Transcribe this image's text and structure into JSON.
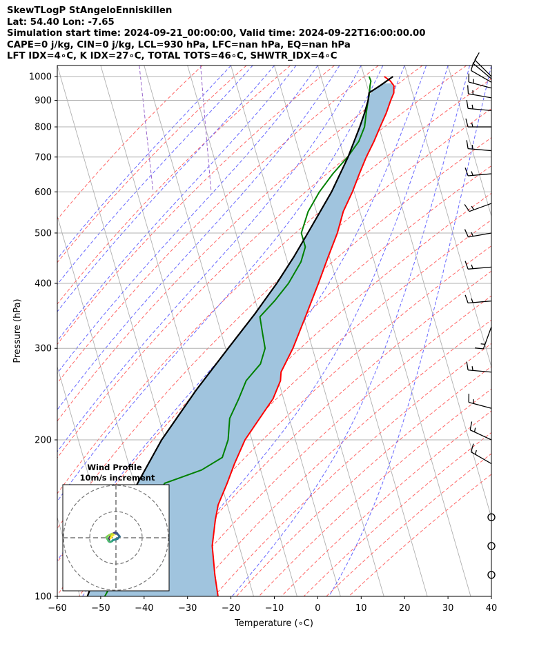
{
  "title": {
    "line1": "SkewTLogP StAngeloEnniskillen",
    "line2": "Lat: 54.40   Lon: -7.65",
    "line3": "Simulation start time: 2024-09-21_00:00:00, Valid time: 2024-09-22T16:00:00.00",
    "line4": "CAPE=0 j/kg, CIN=0 j/kg, LCL=930 hPa, LFC=nan hPa, EQ=nan hPa",
    "line5": "LFT IDX=4∘C, K IDX=27∘C, TOTAL TOTS=46∘C, SHWTR_IDX=4∘C"
  },
  "colors": {
    "temperature": "#ff0000",
    "dewpoint": "#008000",
    "parcel": "#000000",
    "shade": "#a0c4de",
    "dry_adiabat": "#ff6666",
    "moist_adiabat": "#6666ff",
    "mixing_ratio": "#9966cc",
    "isotherm": "#b0b0b0"
  },
  "chart_data": {
    "type": "skewt",
    "xlabel": "Temperature (∘C)",
    "ylabel": "Pressure (hPa)",
    "xlim": [
      -60,
      40
    ],
    "ylim": [
      1050,
      100
    ],
    "x_ticks": [
      "−60",
      "−50",
      "−40",
      "−30",
      "−20",
      "−10",
      "0",
      "10",
      "20",
      "30",
      "40"
    ],
    "x_tick_values": [
      -60,
      -50,
      -40,
      -30,
      -20,
      -10,
      0,
      10,
      20,
      30,
      40
    ],
    "y_ticks": [
      "100",
      "200",
      "300",
      "400",
      "500",
      "600",
      "700",
      "800",
      "900",
      "1000"
    ],
    "y_tick_values": [
      100,
      200,
      300,
      400,
      500,
      600,
      700,
      800,
      900,
      1000
    ],
    "temperature_profile": {
      "pressure": [
        1000,
        980,
        960,
        930,
        900,
        850,
        800,
        750,
        700,
        650,
        600,
        550,
        500,
        450,
        400,
        350,
        300,
        270,
        260,
        240,
        220,
        200,
        180,
        165,
        150,
        140,
        125,
        110,
        100
      ],
      "temperature": [
        14.6,
        15.7,
        16.2,
        15.7,
        14.5,
        12.6,
        10.3,
        7.9,
        5.1,
        2.4,
        -0.4,
        -3.8,
        -6.6,
        -10.3,
        -14.3,
        -19.0,
        -24.5,
        -28.8,
        -29.5,
        -32.4,
        -36.8,
        -41.6,
        -45.6,
        -48.6,
        -52.1,
        -53.8,
        -56.2,
        -57.5,
        -58.2
      ]
    },
    "dewpoint_profile": {
      "pressure": [
        1000,
        980,
        960,
        930,
        900,
        850,
        800,
        750,
        700,
        650,
        600,
        550,
        500,
        470,
        440,
        400,
        370,
        345,
        320,
        300,
        280,
        260,
        240,
        220,
        200,
        185,
        175,
        165,
        150,
        130,
        100
      ],
      "temperature": [
        11.1,
        11.2,
        10.7,
        10.1,
        9.3,
        8.0,
        6.7,
        4.4,
        0.8,
        -3.7,
        -8.0,
        -11.9,
        -14.9,
        -14.9,
        -16.9,
        -21.2,
        -25.6,
        -30.0,
        -30.5,
        -30.9,
        -33.0,
        -37.4,
        -40.3,
        -43.7,
        -45.5,
        -48.0,
        -53.6,
        -63.0,
        -67.6,
        -72.8,
        -84.3
      ]
    },
    "parcel_profile": {
      "pressure": [
        1000,
        960,
        930,
        900,
        850,
        800,
        700,
        600,
        500,
        450,
        400,
        350,
        300,
        250,
        200,
        150,
        125,
        100
      ],
      "temperature": [
        16.6,
        13.0,
        10.0,
        9.3,
        7.6,
        5.6,
        0.9,
        -5.2,
        -13.4,
        -18.2,
        -23.9,
        -30.9,
        -39.4,
        -49.4,
        -60.8,
        -73.4,
        -80.5,
        -88.3
      ]
    },
    "wind_barbs": [
      {
        "pressure": 110,
        "speed_kt": 0,
        "direction_deg": 0
      },
      {
        "pressure": 125,
        "speed_kt": 0,
        "direction_deg": 0
      },
      {
        "pressure": 142,
        "speed_kt": 0,
        "direction_deg": 0
      },
      {
        "pressure": 180,
        "speed_kt": 15,
        "direction_deg": 300
      },
      {
        "pressure": 200,
        "speed_kt": 15,
        "direction_deg": 295
      },
      {
        "pressure": 230,
        "speed_kt": 15,
        "direction_deg": 285
      },
      {
        "pressure": 270,
        "speed_kt": 15,
        "direction_deg": 275
      },
      {
        "pressure": 330,
        "speed_kt": 15,
        "direction_deg": 200
      },
      {
        "pressure": 370,
        "speed_kt": 15,
        "direction_deg": 265
      },
      {
        "pressure": 430,
        "speed_kt": 15,
        "direction_deg": 265
      },
      {
        "pressure": 500,
        "speed_kt": 15,
        "direction_deg": 260
      },
      {
        "pressure": 570,
        "speed_kt": 15,
        "direction_deg": 250
      },
      {
        "pressure": 650,
        "speed_kt": 15,
        "direction_deg": 265
      },
      {
        "pressure": 720,
        "speed_kt": 15,
        "direction_deg": 275
      },
      {
        "pressure": 800,
        "speed_kt": 15,
        "direction_deg": 270
      },
      {
        "pressure": 860,
        "speed_kt": 15,
        "direction_deg": 275
      },
      {
        "pressure": 910,
        "speed_kt": 15,
        "direction_deg": 280
      },
      {
        "pressure": 950,
        "speed_kt": 15,
        "direction_deg": 285
      },
      {
        "pressure": 975,
        "speed_kt": 10,
        "direction_deg": 300
      },
      {
        "pressure": 990,
        "speed_kt": 10,
        "direction_deg": 310
      },
      {
        "pressure": 1000,
        "speed_kt": 10,
        "direction_deg": 315
      }
    ],
    "inset": {
      "title_line1": "Wind Profile",
      "title_line2": "10m/s increment",
      "hodograph_u": [
        -2.5,
        -2.8,
        -2.3,
        -1.6,
        -0.3,
        0.3,
        0.9,
        1.4,
        0.6,
        -0.4,
        -1.1,
        -1.5,
        -2.1,
        -2.8,
        -3.3,
        -3.6,
        -2.6,
        -1.5,
        -0.9,
        -1.6,
        -2.1
      ],
      "hodograph_v": [
        -1.5,
        -0.8,
        0.2,
        1.3,
        2.0,
        1.8,
        1.1,
        0.5,
        -0.4,
        -0.7,
        -0.9,
        -1.3,
        -1.6,
        -1.3,
        -0.4,
        0.3,
        1.0,
        1.5,
        1.2,
        0.6,
        -0.2
      ],
      "ring_radius_ms": [
        10,
        20,
        30
      ]
    }
  }
}
